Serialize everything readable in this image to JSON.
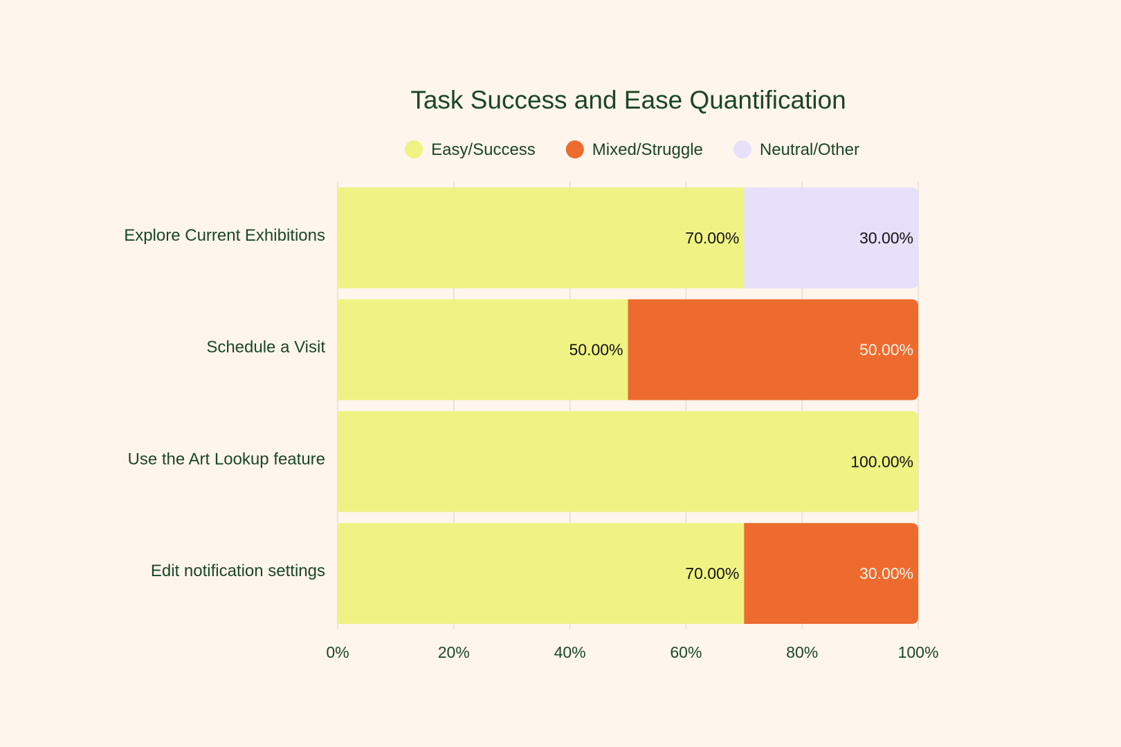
{
  "chart_data": {
    "type": "bar",
    "orientation": "horizontal",
    "stacked": true,
    "title": "Task Success and Ease Quantification",
    "categories": [
      "Explore Current Exhibitions",
      "Schedule a Visit",
      "Use the Art Lookup feature",
      "Edit notification settings"
    ],
    "series": [
      {
        "name": "Easy/Success",
        "color": "#f0f383",
        "label_color": "#111111",
        "values": [
          70,
          50,
          100,
          70
        ],
        "labels": [
          "70.00%",
          "50.00%",
          "100.00%",
          "70.00%"
        ]
      },
      {
        "name": "Mixed/Struggle",
        "color": "#ed6b2e",
        "label_color": "#fef5ec",
        "values": [
          0,
          50,
          0,
          30
        ],
        "labels": [
          "",
          "50.00%",
          "",
          "30.00%"
        ]
      },
      {
        "name": "Neutral/Other",
        "color": "#e6e0fb",
        "label_color": "#111111",
        "values": [
          30,
          0,
          0,
          0
        ],
        "labels": [
          "30.00%",
          "",
          "",
          ""
        ]
      }
    ],
    "xlim": [
      0,
      100
    ],
    "xticks": [
      0,
      20,
      40,
      60,
      80,
      100
    ],
    "xtick_labels": [
      "0%",
      "20%",
      "40%",
      "60%",
      "80%",
      "100%"
    ],
    "grid": true,
    "legend_position": "top-center",
    "colors": {
      "background": "#fef5ec",
      "text": "#1b4527",
      "grid": "#e2ddd3",
      "axis": "#e2ddd3"
    }
  }
}
